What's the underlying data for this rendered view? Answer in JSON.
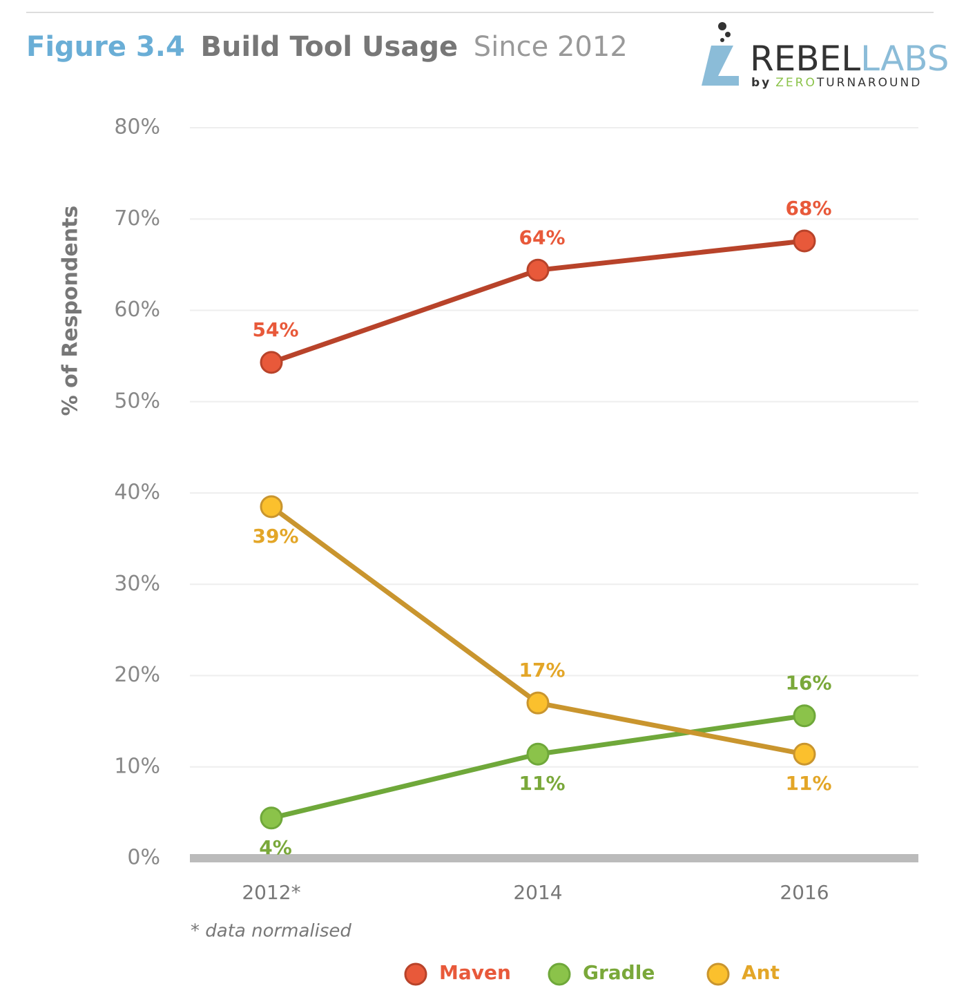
{
  "header": {
    "figure": "Figure 3.4",
    "title": "Build Tool Usage",
    "subtitle": "Since 2012",
    "logo": {
      "rebel": "REBEL",
      "labs": "LABS",
      "by": "by",
      "zero": "ZERO",
      "turnaround": "TURNAROUND"
    }
  },
  "chart_data": {
    "type": "line",
    "categories": [
      "2012*",
      "2014",
      "2016"
    ],
    "y_label": "% of Respondents",
    "footnote": "* data normalised",
    "ylim": [
      0,
      80
    ],
    "yticks": [
      {
        "value": 0,
        "label": "0%"
      },
      {
        "value": 10,
        "label": "10%"
      },
      {
        "value": 20,
        "label": "20%"
      },
      {
        "value": 30,
        "label": "30%"
      },
      {
        "value": 40,
        "label": "40%"
      },
      {
        "value": 50,
        "label": "50%"
      },
      {
        "value": 60,
        "label": "60%"
      },
      {
        "value": 70,
        "label": "70%"
      },
      {
        "value": 80,
        "label": "80%"
      }
    ],
    "grid": true,
    "series": [
      {
        "name": "Maven",
        "color": "#e8593a",
        "line_color": "#b8432a",
        "values": [
          54.3,
          64.4,
          67.6
        ],
        "value_labels": [
          "54%",
          "64%",
          "68%"
        ]
      },
      {
        "name": "Gradle",
        "color": "#8bc34a",
        "line_color": "#6fa83a",
        "values": [
          4.4,
          11.4,
          15.6
        ],
        "value_labels": [
          "4%",
          "11%",
          "16%"
        ]
      },
      {
        "name": "Ant",
        "color": "#fbc02d",
        "line_color": "#c9952e",
        "values": [
          38.5,
          17.0,
          11.4
        ],
        "value_labels": [
          "39%",
          "17%",
          "11%"
        ]
      }
    ]
  }
}
